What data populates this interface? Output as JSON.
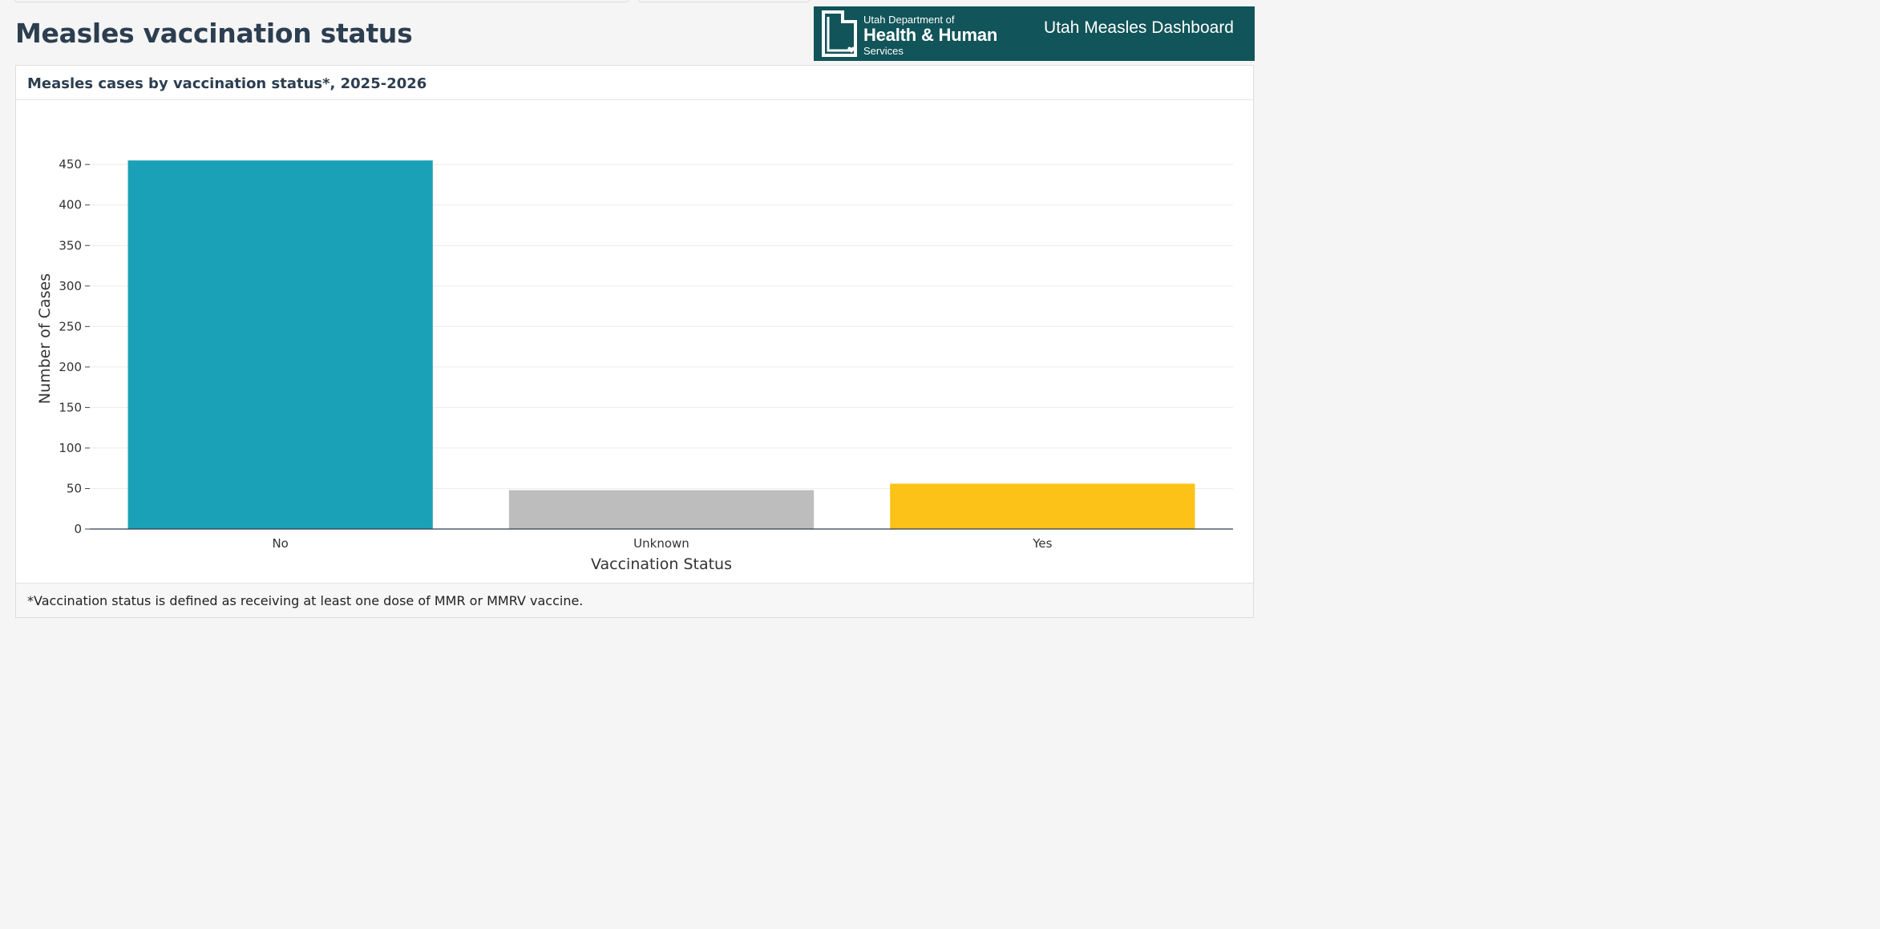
{
  "page": {
    "title": "Measles vaccination status"
  },
  "brand": {
    "org_line1": "Utah Department of",
    "org_line2": "Health & Human",
    "org_line3": "Services",
    "dashboard_title": "Utah Measles Dashboard",
    "bg_color": "#115459"
  },
  "card": {
    "title": "Measles cases by vaccination status*, 2025-2026",
    "footnote": "*Vaccination status is defined as receiving at least one dose of MMR or MMRV vaccine."
  },
  "chart_data": {
    "type": "bar",
    "title": "Measles cases by vaccination status*, 2025-2026",
    "xlabel": "Vaccination Status",
    "ylabel": "Number of Cases",
    "categories": [
      "No",
      "Unknown",
      "Yes"
    ],
    "values": [
      455,
      48,
      56
    ],
    "colors": [
      "#1ba1b7",
      "#bdbdbd",
      "#fdc218"
    ],
    "ylim": [
      0,
      470
    ],
    "yticks": [
      0,
      50,
      100,
      150,
      200,
      250,
      300,
      350,
      400,
      450
    ],
    "grid": true,
    "legend": "none"
  }
}
